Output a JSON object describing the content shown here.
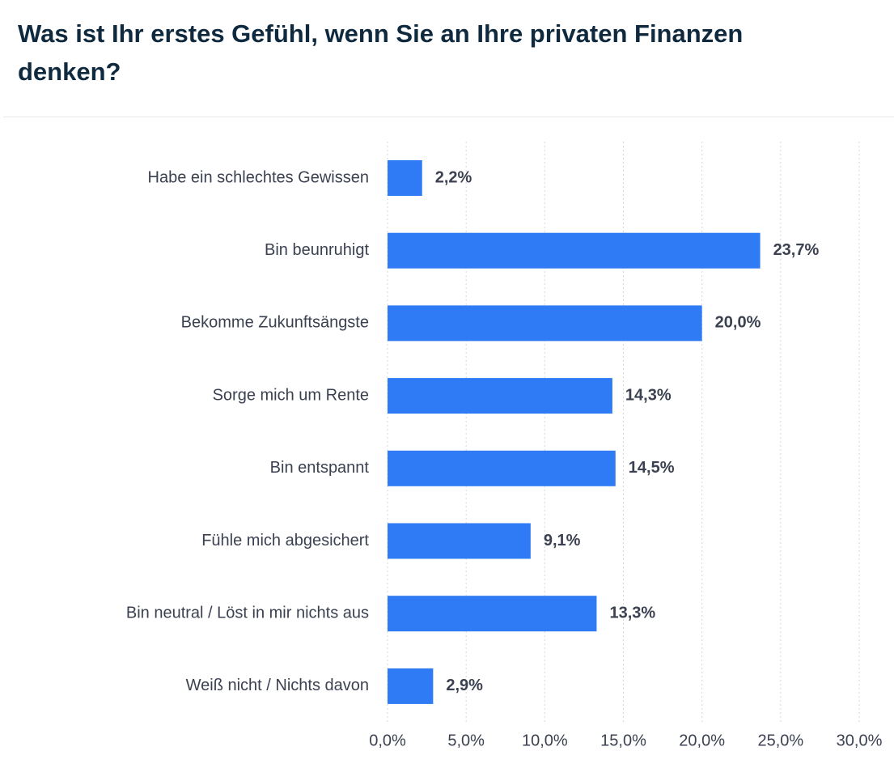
{
  "chart_data": {
    "type": "bar",
    "orientation": "horizontal",
    "title": "Was ist Ihr erstes Gefühl, wenn Sie an Ihre privaten Finanzen denken?",
    "categories": [
      "Habe ein schlechtes Gewissen",
      "Bin beunruhigt",
      "Bekomme Zukunftsängste",
      "Sorge mich um Rente",
      "Bin entspannt",
      "Fühle mich abgesichert",
      "Bin neutral / Löst in mir nichts aus",
      "Weiß nicht / Nichts davon"
    ],
    "values": [
      2.2,
      23.7,
      20.0,
      14.3,
      14.5,
      9.1,
      13.3,
      2.9
    ],
    "value_labels": [
      "2,2%",
      "23,7%",
      "20,0%",
      "14,3%",
      "14,5%",
      "9,1%",
      "13,3%",
      "2,9%"
    ],
    "color": "#2f7bf5",
    "xlim": [
      0,
      30
    ],
    "xticks": [
      {
        "value": 0,
        "label": "0,0%"
      },
      {
        "value": 5,
        "label": "5,0%"
      },
      {
        "value": 10,
        "label": "10,0%"
      },
      {
        "value": 15,
        "label": "15,0%"
      },
      {
        "value": 20,
        "label": "20,0%"
      },
      {
        "value": 25,
        "label": "25,0%"
      },
      {
        "value": 30,
        "label": "30,0%"
      }
    ],
    "grid": true
  }
}
